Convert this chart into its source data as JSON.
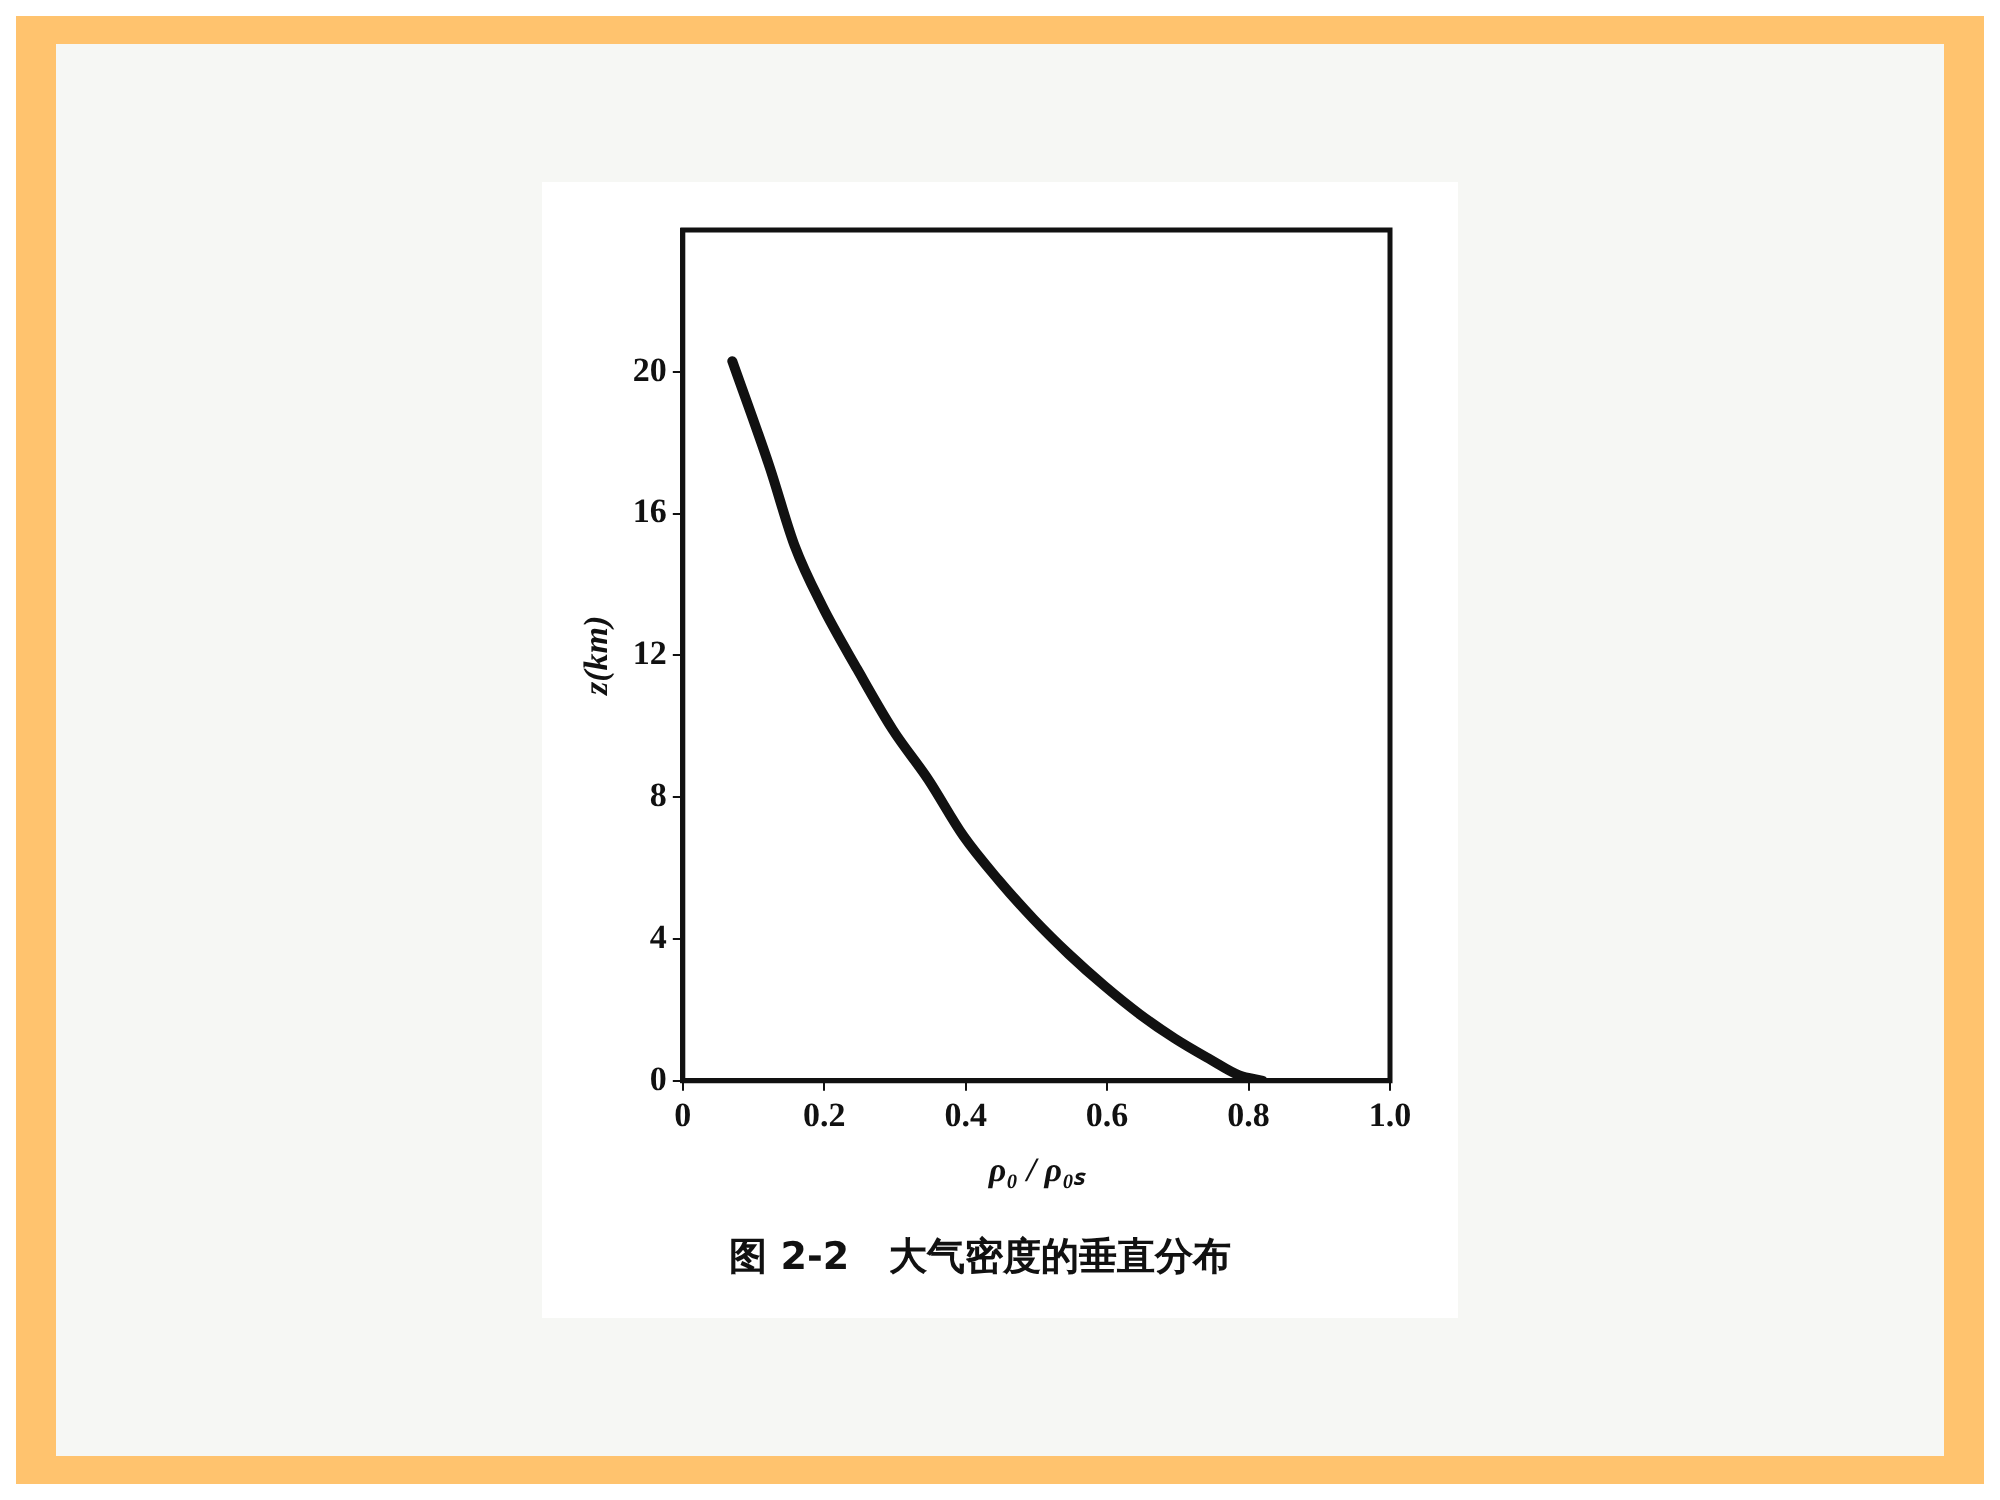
{
  "chart_data": {
    "type": "line",
    "title": "图 2-2   大气密度的垂直分布",
    "xlabel": "ρ₀ / ρ₀ₛ",
    "ylabel": "z(km)",
    "xlim": [
      0,
      1
    ],
    "xticks": [
      0,
      0.2,
      0.4,
      0.6,
      0.8,
      {
        "value": 1,
        "label": "1.0"
      }
    ],
    "ylim": [
      0,
      24
    ],
    "yticks": [
      0,
      4,
      8,
      12,
      16,
      20
    ],
    "grid": false,
    "legend": false,
    "marker": "none",
    "line_style": "solid",
    "series": [
      {
        "color": "#111111",
        "x": [
          0.07,
          0.123,
          0.158,
          0.197,
          0.247,
          0.297,
          0.347,
          0.397,
          0.447,
          0.496,
          0.546,
          0.596,
          0.646,
          0.696,
          0.746,
          0.786,
          0.82
        ],
        "values": [
          20.3,
          17.3,
          15.1,
          13.4,
          11.6,
          9.9,
          8.5,
          6.9,
          5.65,
          4.56,
          3.57,
          2.68,
          1.88,
          1.19,
          0.6,
          0.16,
          0
        ]
      }
    ]
  }
}
